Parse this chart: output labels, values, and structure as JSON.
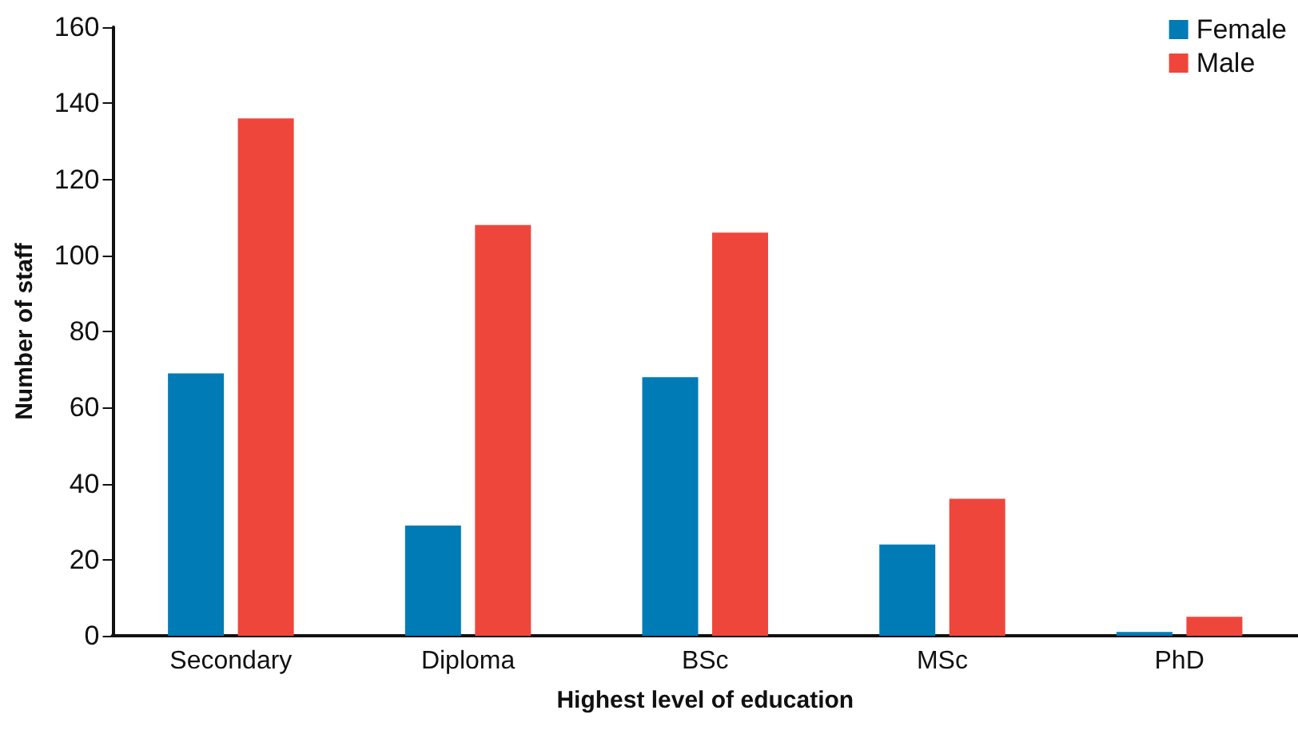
{
  "chart_data": {
    "type": "bar",
    "xlabel": "Highest level of education",
    "ylabel": "Number of staff",
    "categories": [
      "Secondary",
      "Diploma",
      "BSc",
      "MSc",
      "PhD"
    ],
    "series": [
      {
        "name": "Female",
        "color": "#007bb6",
        "values": [
          69,
          29,
          68,
          24,
          1
        ]
      },
      {
        "name": "Male",
        "color": "#ef463c",
        "values": [
          136,
          108,
          106,
          36,
          5
        ]
      }
    ],
    "ylim": [
      0,
      160
    ],
    "yticks": [
      0,
      20,
      40,
      60,
      80,
      100,
      120,
      140,
      160
    ],
    "grid": false,
    "legend": "top right"
  }
}
